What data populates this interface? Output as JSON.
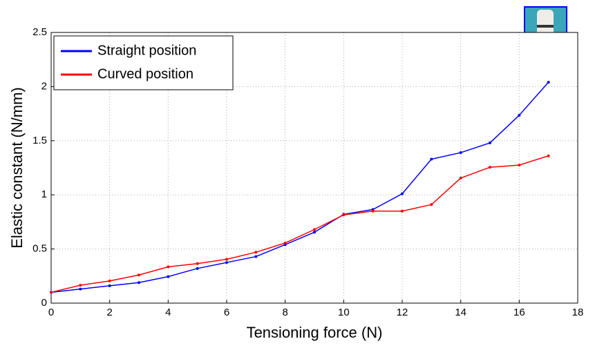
{
  "chart_data": {
    "type": "line",
    "xlabel": "Tensioning force (N)",
    "ylabel": "Elastic constant (N/mm)",
    "x": [
      0,
      1,
      2,
      3,
      4,
      5,
      6,
      7,
      8,
      9,
      10,
      11,
      12,
      13,
      14,
      15,
      16,
      17
    ],
    "series": [
      {
        "name": "Straight position",
        "color": "#0000ff",
        "values": [
          0.1,
          0.13,
          0.16,
          0.19,
          0.245,
          0.32,
          0.375,
          0.43,
          0.54,
          0.655,
          0.82,
          0.865,
          1.01,
          1.33,
          1.39,
          1.48,
          1.735,
          2.04
        ]
      },
      {
        "name": "Curved position",
        "color": "#ff0000",
        "values": [
          0.1,
          0.165,
          0.205,
          0.26,
          0.335,
          0.365,
          0.405,
          0.47,
          0.555,
          0.68,
          0.815,
          0.85,
          0.85,
          0.91,
          1.155,
          1.255,
          1.275,
          1.36
        ]
      }
    ],
    "xlim": [
      0,
      18
    ],
    "xticks": [
      0,
      2,
      4,
      6,
      8,
      10,
      12,
      14,
      16,
      18
    ],
    "ylim": [
      0,
      2.5
    ],
    "yticks": [
      0,
      0.5,
      1,
      1.5,
      2,
      2.5
    ],
    "grid": true,
    "legend": "upper left"
  }
}
